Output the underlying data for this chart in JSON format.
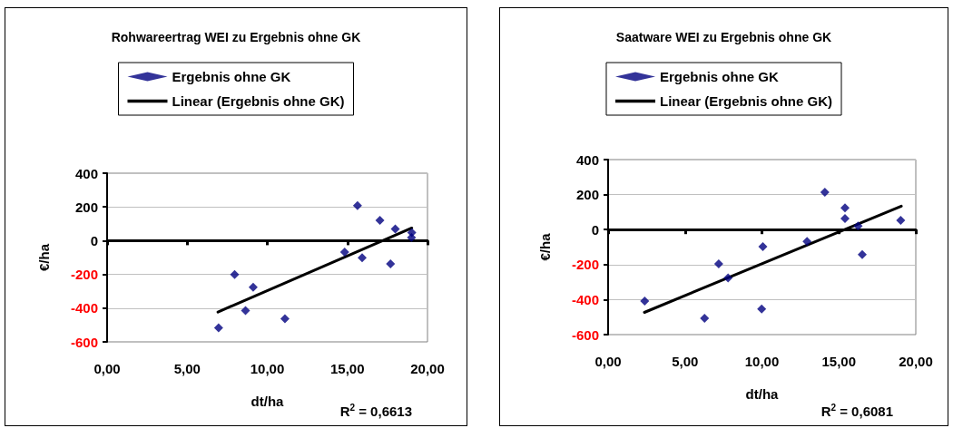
{
  "chart_data": [
    {
      "type": "scatter",
      "title": "Rohwareertrag WEI zu Ergebnis ohne GK",
      "xlabel": "dt/ha",
      "ylabel": "€/ha",
      "annotations": [
        "R$^{2}$ = 0,6613"
      ],
      "marker": "diamond",
      "grid": "y",
      "legend": "top",
      "xlim": [
        0,
        20
      ],
      "xticks": [
        {
          "value": 0,
          "label": "0,00"
        },
        {
          "value": 5,
          "label": "5,00"
        },
        {
          "value": 10,
          "label": "10,00"
        },
        {
          "value": 15,
          "label": "15,00"
        },
        {
          "value": 20,
          "label": "20,00"
        }
      ],
      "ylim": [
        -600,
        400
      ],
      "yticks": [
        -600,
        -400,
        -200,
        0,
        200,
        400
      ],
      "series": [
        {
          "name": "Ergebnis ohne GK",
          "color": "#000080",
          "x": [
            6.96,
            7.96,
            9.12,
            8.64,
            11.1,
            14.83,
            15.63,
            15.92,
            17.03,
            17.99,
            17.69,
            19.02,
            19.0
          ],
          "values": [
            -516,
            -201,
            -276,
            -415,
            -463,
            -68,
            208,
            -101,
            121,
            69,
            -137,
            48,
            18
          ]
        },
        {
          "name": "Linear (Ergebnis ohne GK)",
          "type": "line",
          "color": "#000000",
          "marker": "none",
          "x": [
            6.92,
            19.02
          ],
          "values": [
            -423,
            75
          ]
        }
      ]
    },
    {
      "type": "scatter",
      "title": "Saatware WEI zu Ergebnis ohne GK",
      "xlabel": "dt/ha",
      "ylabel": "€/ha",
      "annotations": [
        "R$^{2}$ = 0,6081"
      ],
      "marker": "diamond",
      "grid": "y",
      "legend": "top",
      "xlim": [
        0,
        20
      ],
      "xticks": [
        {
          "value": 0,
          "label": "0,00"
        },
        {
          "value": 5,
          "label": "5,00"
        },
        {
          "value": 10,
          "label": "10,00"
        },
        {
          "value": 15,
          "label": "15,00"
        },
        {
          "value": 20,
          "label": "20,00"
        }
      ],
      "ylim": [
        -600,
        400
      ],
      "yticks": [
        -600,
        -400,
        -200,
        0,
        200,
        400
      ],
      "series": [
        {
          "name": "Ergebnis ohne GK",
          "color": "#000080",
          "x": [
            2.38,
            6.27,
            7.19,
            7.8,
            10.06,
            9.98,
            12.93,
            14.09,
            15.4,
            15.4,
            16.25,
            16.52,
            19.02
          ],
          "values": [
            -408,
            -507,
            -196,
            -276,
            -97,
            -453,
            -68,
            213,
            124,
            63,
            20,
            -143,
            53
          ]
        },
        {
          "name": "Linear (Ergebnis ohne GK)",
          "type": "line",
          "color": "#000000",
          "marker": "none",
          "x": [
            2.36,
            19.06
          ],
          "values": [
            -473,
            134
          ]
        }
      ]
    }
  ]
}
